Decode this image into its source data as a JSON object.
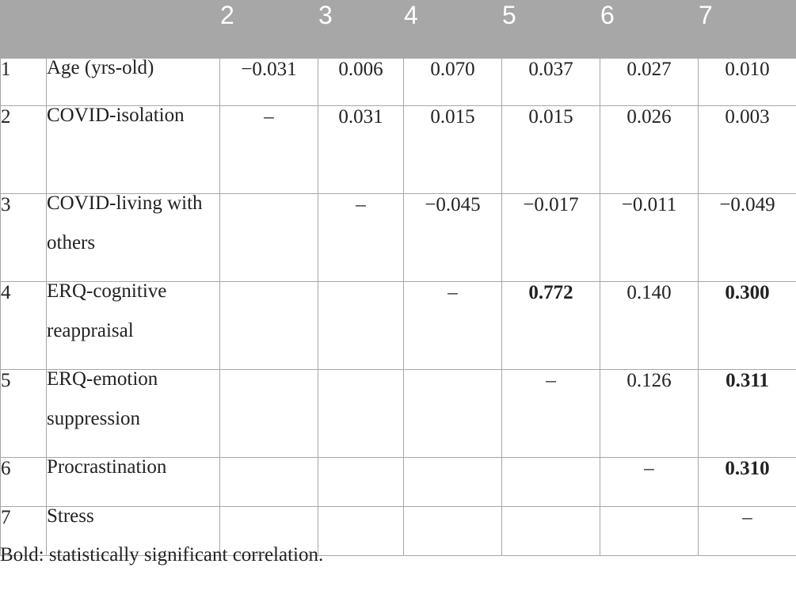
{
  "header": [
    "",
    "",
    "2",
    "3",
    "4",
    "5",
    "6",
    "7"
  ],
  "rows": [
    {
      "index": "1",
      "variable": "Age (yrs-old)",
      "cells": [
        {
          "v": "−0.031",
          "bold": false
        },
        {
          "v": "0.006",
          "bold": false
        },
        {
          "v": "0.070",
          "bold": false
        },
        {
          "v": "0.037",
          "bold": false
        },
        {
          "v": "0.027",
          "bold": false
        },
        {
          "v": "0.010",
          "bold": false
        }
      ]
    },
    {
      "index": "2",
      "variable": "COVID-isolation",
      "cells": [
        {
          "v": "–",
          "bold": false
        },
        {
          "v": "0.031",
          "bold": false
        },
        {
          "v": "0.015",
          "bold": false
        },
        {
          "v": "0.015",
          "bold": false
        },
        {
          "v": "0.026",
          "bold": false
        },
        {
          "v": "0.003",
          "bold": false
        }
      ]
    },
    {
      "index": "3",
      "variable": "COVID-living with others",
      "cells": [
        {
          "v": "",
          "bold": false
        },
        {
          "v": "–",
          "bold": false
        },
        {
          "v": "−0.045",
          "bold": false
        },
        {
          "v": "−0.017",
          "bold": false
        },
        {
          "v": "−0.011",
          "bold": false
        },
        {
          "v": "−0.049",
          "bold": false
        }
      ]
    },
    {
      "index": "4",
      "variable": "ERQ-cognitive reappraisal",
      "cells": [
        {
          "v": "",
          "bold": false
        },
        {
          "v": "",
          "bold": false
        },
        {
          "v": "–",
          "bold": false
        },
        {
          "v": "0.772",
          "bold": true
        },
        {
          "v": "0.140",
          "bold": false
        },
        {
          "v": "0.300",
          "bold": true
        }
      ]
    },
    {
      "index": "5",
      "variable": "ERQ-emotion suppression",
      "cells": [
        {
          "v": "",
          "bold": false
        },
        {
          "v": "",
          "bold": false
        },
        {
          "v": "",
          "bold": false
        },
        {
          "v": "–",
          "bold": false
        },
        {
          "v": "0.126",
          "bold": false
        },
        {
          "v": "0.311",
          "bold": true
        }
      ]
    },
    {
      "index": "6",
      "variable": "Procrastination",
      "cells": [
        {
          "v": "",
          "bold": false
        },
        {
          "v": "",
          "bold": false
        },
        {
          "v": "",
          "bold": false
        },
        {
          "v": "",
          "bold": false
        },
        {
          "v": "–",
          "bold": false
        },
        {
          "v": "0.310",
          "bold": true
        }
      ]
    },
    {
      "index": "7",
      "variable": "Stress",
      "cells": [
        {
          "v": "",
          "bold": false
        },
        {
          "v": "",
          "bold": false
        },
        {
          "v": "",
          "bold": false
        },
        {
          "v": "",
          "bold": false
        },
        {
          "v": "",
          "bold": false
        },
        {
          "v": "–",
          "bold": false
        }
      ]
    }
  ],
  "note": "Bold: statistically significant correlation.",
  "colors": {
    "header_bg": "#a7a7a7",
    "border": "#a7a7a7",
    "text": "#222222"
  }
}
